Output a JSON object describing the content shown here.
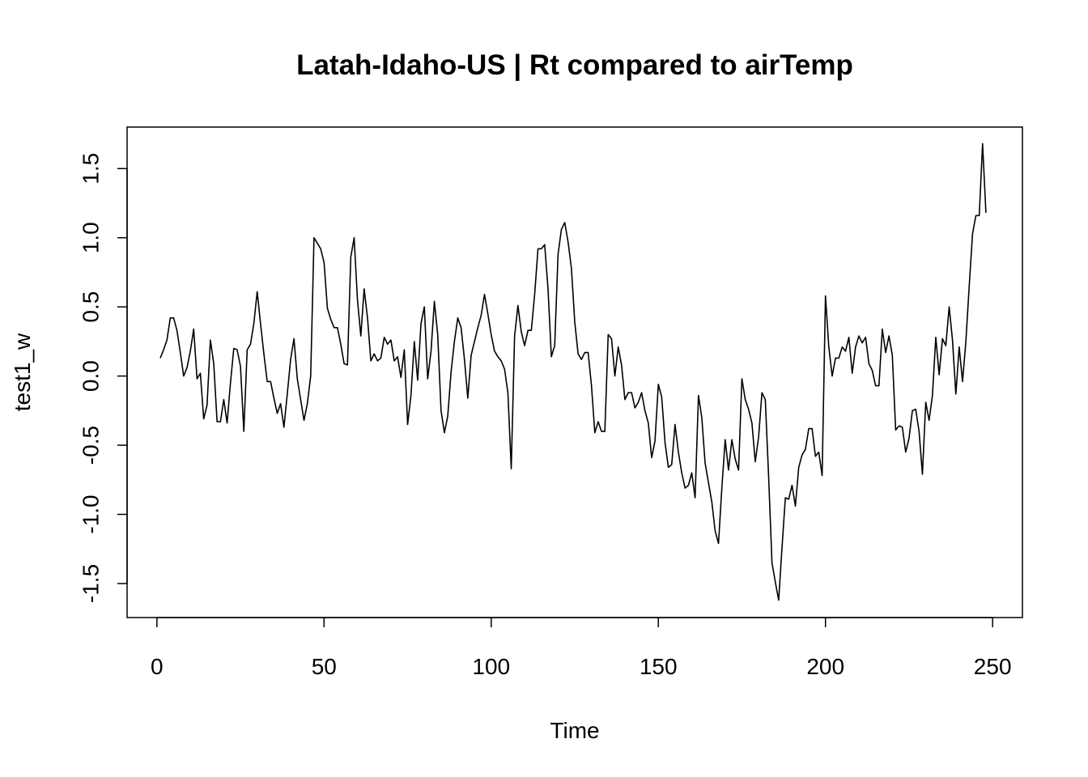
{
  "chart_data": {
    "type": "line",
    "title": "Latah-Idaho-US | Rt compared to airTemp",
    "xlabel": "Time",
    "ylabel": "test1_w",
    "xlim": [
      -8.92,
      258.92
    ],
    "ylim": [
      -1.746,
      1.8
    ],
    "x_ticks": [
      0,
      50,
      100,
      150,
      200,
      250
    ],
    "x_tick_labels": [
      "0",
      "50",
      "100",
      "150",
      "200",
      "250"
    ],
    "y_ticks": [
      -1.5,
      -1.0,
      -0.5,
      0.0,
      0.5,
      1.0,
      1.5
    ],
    "y_tick_labels": [
      "-1.5",
      "-1.0",
      "-0.5",
      "0.0",
      "0.5",
      "1.0",
      "1.5"
    ],
    "grid": false,
    "series": [
      {
        "x": [
          1,
          2,
          3,
          4,
          5,
          6,
          7,
          8,
          9,
          10,
          11,
          12,
          13,
          14,
          15,
          16,
          17,
          18,
          19,
          20,
          21,
          22,
          23,
          24,
          25,
          26,
          27,
          28,
          29,
          30,
          31,
          32,
          33,
          34,
          35,
          36,
          37,
          38,
          39,
          40,
          41,
          42,
          43,
          44,
          45,
          46,
          47,
          48,
          49,
          50,
          51,
          52,
          53,
          54,
          55,
          56,
          57,
          58,
          59,
          60,
          61,
          62,
          63,
          64,
          65,
          66,
          67,
          68,
          69,
          70,
          71,
          72,
          73,
          74,
          75,
          76,
          77,
          78,
          79,
          80,
          81,
          82,
          83,
          84,
          85,
          86,
          87,
          88,
          89,
          90,
          91,
          92,
          93,
          94,
          95,
          96,
          97,
          98,
          99,
          100,
          101,
          102,
          103,
          104,
          105,
          106,
          107,
          108,
          109,
          110,
          111,
          112,
          113,
          114,
          115,
          116,
          117,
          118,
          119,
          120,
          121,
          122,
          123,
          124,
          125,
          126,
          127,
          128,
          129,
          130,
          131,
          132,
          133,
          134,
          135,
          136,
          137,
          138,
          139,
          140,
          141,
          142,
          143,
          144,
          145,
          146,
          147,
          148,
          149,
          150,
          151,
          152,
          153,
          154,
          155,
          156,
          157,
          158,
          159,
          160,
          161,
          162,
          163,
          164,
          165,
          166,
          167,
          168,
          169,
          170,
          171,
          172,
          173,
          174,
          175,
          176,
          177,
          178,
          179,
          180,
          181,
          182,
          183,
          184,
          185,
          186,
          187,
          188,
          189,
          190,
          191,
          192,
          193,
          194,
          195,
          196,
          197,
          198,
          199,
          200,
          201,
          202,
          203,
          204,
          205,
          206,
          207,
          208,
          209,
          210,
          211,
          212,
          213,
          214,
          215,
          216,
          217,
          218,
          219,
          220,
          221,
          222,
          223,
          224,
          225,
          226,
          227,
          228,
          229,
          230,
          231,
          232,
          233,
          234,
          235,
          236,
          237,
          238,
          239,
          240,
          241,
          242,
          243,
          244,
          245,
          246,
          247,
          248
        ],
        "values": [
          0.13,
          0.19,
          0.26,
          0.42,
          0.42,
          0.33,
          0.17,
          0.0,
          0.06,
          0.18,
          0.34,
          -0.02,
          0.02,
          -0.31,
          -0.21,
          0.26,
          0.09,
          -0.33,
          -0.33,
          -0.17,
          -0.34,
          -0.05,
          0.2,
          0.19,
          0.07,
          -0.4,
          0.19,
          0.23,
          0.38,
          0.61,
          0.38,
          0.16,
          -0.04,
          -0.04,
          -0.16,
          -0.27,
          -0.2,
          -0.37,
          -0.13,
          0.12,
          0.27,
          -0.02,
          -0.17,
          -0.32,
          -0.2,
          0.0,
          1.0,
          0.96,
          0.92,
          0.82,
          0.49,
          0.41,
          0.35,
          0.35,
          0.23,
          0.09,
          0.08,
          0.86,
          1.0,
          0.55,
          0.29,
          0.63,
          0.42,
          0.11,
          0.16,
          0.11,
          0.13,
          0.28,
          0.23,
          0.26,
          0.11,
          0.14,
          -0.01,
          0.19,
          -0.35,
          -0.14,
          0.25,
          -0.03,
          0.38,
          0.5,
          -0.02,
          0.18,
          0.54,
          0.3,
          -0.25,
          -0.41,
          -0.29,
          0.03,
          0.25,
          0.42,
          0.35,
          0.12,
          -0.16,
          0.15,
          0.25,
          0.35,
          0.44,
          0.59,
          0.45,
          0.3,
          0.18,
          0.14,
          0.11,
          0.05,
          -0.12,
          -0.67,
          0.29,
          0.51,
          0.32,
          0.22,
          0.33,
          0.33,
          0.59,
          0.92,
          0.92,
          0.95,
          0.63,
          0.14,
          0.22,
          0.88,
          1.06,
          1.11,
          0.97,
          0.78,
          0.39,
          0.16,
          0.12,
          0.17,
          0.17,
          -0.07,
          -0.41,
          -0.33,
          -0.4,
          -0.4,
          0.3,
          0.27,
          0.0,
          0.21,
          0.08,
          -0.17,
          -0.12,
          -0.12,
          -0.23,
          -0.19,
          -0.12,
          -0.25,
          -0.34,
          -0.59,
          -0.47,
          -0.06,
          -0.15,
          -0.48,
          -0.66,
          -0.64,
          -0.35,
          -0.55,
          -0.7,
          -0.81,
          -0.79,
          -0.7,
          -0.88,
          -0.14,
          -0.3,
          -0.63,
          -0.77,
          -0.91,
          -1.12,
          -1.21,
          -0.81,
          -0.46,
          -0.68,
          -0.46,
          -0.6,
          -0.68,
          -0.02,
          -0.17,
          -0.24,
          -0.34,
          -0.62,
          -0.44,
          -0.12,
          -0.17,
          -0.73,
          -1.35,
          -1.49,
          -1.62,
          -1.24,
          -0.88,
          -0.89,
          -0.79,
          -0.94,
          -0.66,
          -0.57,
          -0.53,
          -0.38,
          -0.38,
          -0.58,
          -0.55,
          -0.72,
          0.58,
          0.21,
          0.0,
          0.13,
          0.13,
          0.21,
          0.18,
          0.28,
          0.02,
          0.21,
          0.29,
          0.24,
          0.28,
          0.09,
          0.04,
          -0.07,
          -0.07,
          0.34,
          0.17,
          0.29,
          0.15,
          -0.39,
          -0.36,
          -0.37,
          -0.55,
          -0.45,
          -0.25,
          -0.24,
          -0.4,
          -0.71,
          -0.19,
          -0.32,
          -0.14,
          0.28,
          0.01,
          0.27,
          0.22,
          0.5,
          0.26,
          -0.13,
          0.21,
          -0.04,
          0.25,
          0.65,
          1.03,
          1.16,
          1.16,
          1.68,
          1.18
        ]
      }
    ]
  }
}
